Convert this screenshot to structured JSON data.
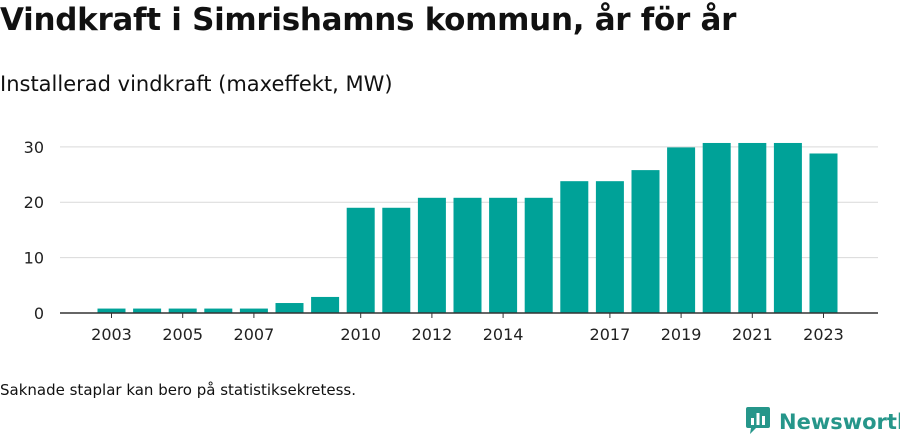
{
  "title": "Vindkraft i Simrishamns kommun, år för år",
  "subtitle": "Installerad vindkraft (maxeffekt, MW)",
  "footnote": "Saknade staplar kan bero på statistiksekretess.",
  "brand": {
    "name": "Newsworthy",
    "icon": "newsworthy-logo-icon",
    "color": "#26968a"
  },
  "colors": {
    "bar": "#00a298",
    "grid": "#d9d9d9",
    "axis": "#333333"
  },
  "chart_data": {
    "type": "bar",
    "categories": [
      "2003",
      "2004",
      "2005",
      "2006",
      "2007",
      "2008",
      "2009",
      "2010",
      "2011",
      "2012",
      "2013",
      "2014",
      "2015",
      "2016",
      "2017",
      "2018",
      "2019",
      "2020",
      "2021",
      "2022",
      "2023"
    ],
    "values": [
      0.8,
      0.8,
      0.8,
      0.8,
      0.8,
      1.8,
      2.9,
      19,
      19,
      20.8,
      20.8,
      20.8,
      20.8,
      23.8,
      23.8,
      25.8,
      29.9,
      30.7,
      30.7,
      30.7,
      28.8
    ],
    "x_tick_labels": [
      "2003",
      "2005",
      "2007",
      "2010",
      "2012",
      "2014",
      "2017",
      "2019",
      "2021",
      "2023"
    ],
    "yticks": [
      0,
      10,
      20,
      30
    ],
    "ylim": [
      0,
      32.5
    ],
    "xlabel": "",
    "ylabel": "",
    "grid": true,
    "legend": "none"
  }
}
